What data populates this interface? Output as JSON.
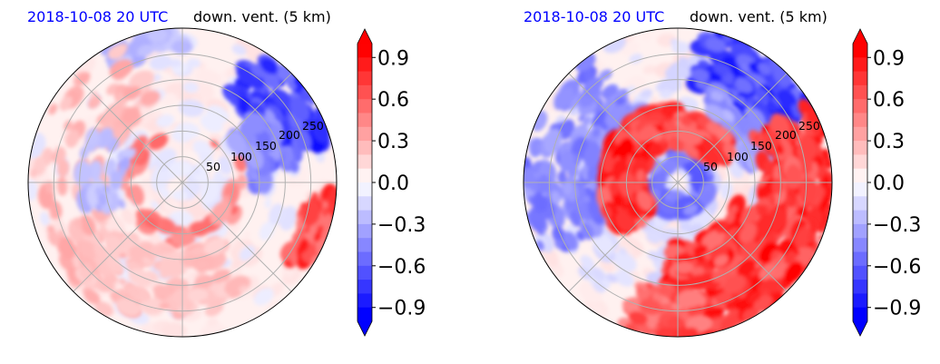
{
  "colors": {
    "positive": "#ff0000",
    "negative": "#0000ff",
    "title_time": "#0000ff",
    "title_var": "#000000",
    "grid": "#b0b0b0"
  },
  "chart_data": [
    {
      "type": "polar-contourf",
      "panel": "left",
      "title_time": "2018-10-08 20 UTC",
      "title_var": "down. vent. (5 km)",
      "radial_ticks": [
        "50",
        "100",
        "150",
        "200",
        "250"
      ],
      "radial_values": [
        50,
        100,
        150,
        200,
        250
      ],
      "rmax": 300,
      "grid": true,
      "colorbar": {
        "cmap": "bwr",
        "vmin": -1.0,
        "vmax": 1.0,
        "extend": "both",
        "ticks": [
          "0.9",
          "0.6",
          "0.3",
          "0.0",
          "−0.3",
          "−0.6",
          "−0.9"
        ],
        "tick_values": [
          0.9,
          0.6,
          0.3,
          0.0,
          -0.3,
          -0.6,
          -0.9
        ]
      },
      "features": [
        {
          "sign": "negative",
          "strength": 0.9,
          "region": "upper-right arc, r≈180–300 km, az 40–75°"
        },
        {
          "sign": "positive",
          "strength": 0.8,
          "region": "right edge near az 100–120°, r≈260–300 km"
        },
        {
          "sign": "positive",
          "strength": 0.4,
          "region": "scattered weak rainbands, left half"
        }
      ]
    },
    {
      "type": "polar-contourf",
      "panel": "right",
      "title_time": "2018-10-08 20 UTC",
      "title_var": "down. vent. (5 km)",
      "radial_ticks": [
        "50",
        "100",
        "150",
        "200",
        "250"
      ],
      "radial_values": [
        50,
        100,
        150,
        200,
        250
      ],
      "rmax": 300,
      "grid": true,
      "colorbar": {
        "cmap": "bwr",
        "vmin": -1.0,
        "vmax": 1.0,
        "extend": "both",
        "ticks": [
          "0.9",
          "0.6",
          "0.3",
          "0.0",
          "−0.3",
          "−0.6",
          "−0.9"
        ],
        "tick_values": [
          0.9,
          0.6,
          0.3,
          0.0,
          -0.3,
          -0.6,
          -0.9
        ]
      },
      "features": [
        {
          "sign": "positive",
          "strength": 1.0,
          "region": "spiral band, inner ring r≈70–150 km from W through N to E"
        },
        {
          "sign": "positive",
          "strength": 1.0,
          "region": "large band lower-right, r≈100–300 km, az 110–190°"
        },
        {
          "sign": "negative",
          "strength": 0.9,
          "region": "upper arc near edge, az 10–60°"
        },
        {
          "sign": "negative",
          "strength": 0.6,
          "region": "left side bands, az 250–320°"
        }
      ]
    }
  ]
}
